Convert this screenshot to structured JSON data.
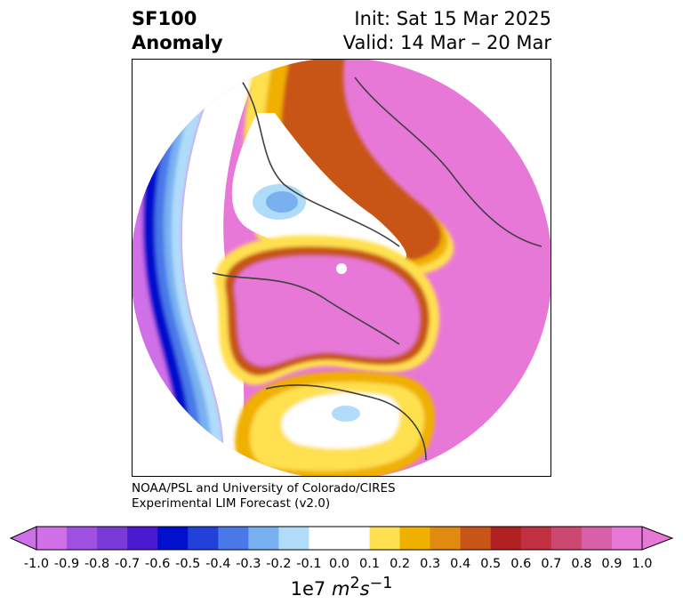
{
  "title": {
    "left_line1": "SF100",
    "left_line2": "Anomaly",
    "right_line1": "Init: Sat 15 Mar 2025",
    "right_line2": "Valid: 14 Mar – 20 Mar"
  },
  "credit": {
    "line1": "NOAA/PSL and University of Colorado/CIRES",
    "line2": "Experimental LIM Forecast (v2.0)"
  },
  "colorbar": {
    "label": "1e7 m²s⁻¹",
    "ticks": [
      "-1.0",
      "-0.9",
      "-0.8",
      "-0.7",
      "-0.6",
      "-0.5",
      "-0.4",
      "-0.3",
      "-0.2",
      "-0.1",
      "0.0",
      "0.1",
      "0.2",
      "0.3",
      "0.4",
      "0.5",
      "0.6",
      "0.7",
      "0.8",
      "0.9",
      "1.0"
    ],
    "colors": [
      "#d070e8",
      "#a050e0",
      "#7a3ad8",
      "#4a1ad0",
      "#0010cc",
      "#2040d8",
      "#4a78e8",
      "#78b0f0",
      "#b0dcfa",
      "#ffffff",
      "#ffffff",
      "#ffe050",
      "#f0b000",
      "#e08a10",
      "#c85418",
      "#b02020",
      "#c03040",
      "#cc4870",
      "#d860a8",
      "#e878d8"
    ],
    "under_color": "#d070e8",
    "over_color": "#e878d8"
  },
  "map": {
    "projection": "north-polar",
    "region": "Northern Hemisphere"
  }
}
